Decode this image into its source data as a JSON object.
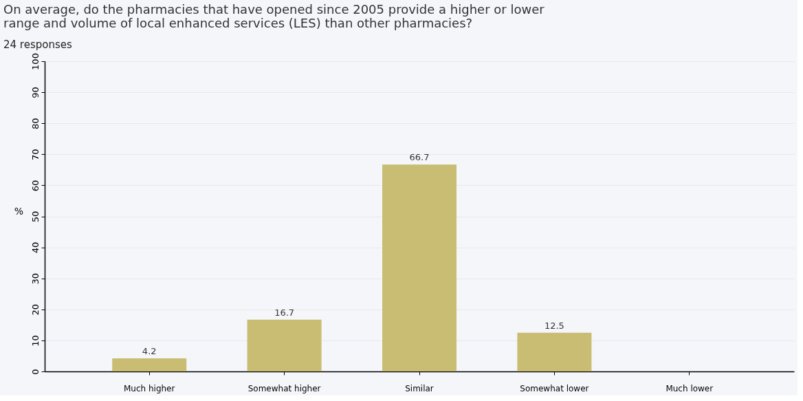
{
  "chart_data": {
    "type": "bar",
    "title": "On average, do the pharmacies that have opened since 2005 provide a higher or lower\nrange and volume of local enhanced services (LES) than other pharmacies?",
    "subtitle": "24 responses",
    "ylabel": "%",
    "categories": [
      "Much higher",
      "Somewhat higher",
      "Similar",
      "Somewhat lower",
      "Much lower"
    ],
    "values": [
      4.2,
      16.7,
      66.7,
      12.5,
      null
    ],
    "color": "#c8bd72",
    "ylim": [
      0,
      100
    ],
    "yticks": [
      0,
      10,
      20,
      30,
      40,
      50,
      60,
      70,
      80,
      90,
      100
    ],
    "grid": "y",
    "data_labels": true
  }
}
